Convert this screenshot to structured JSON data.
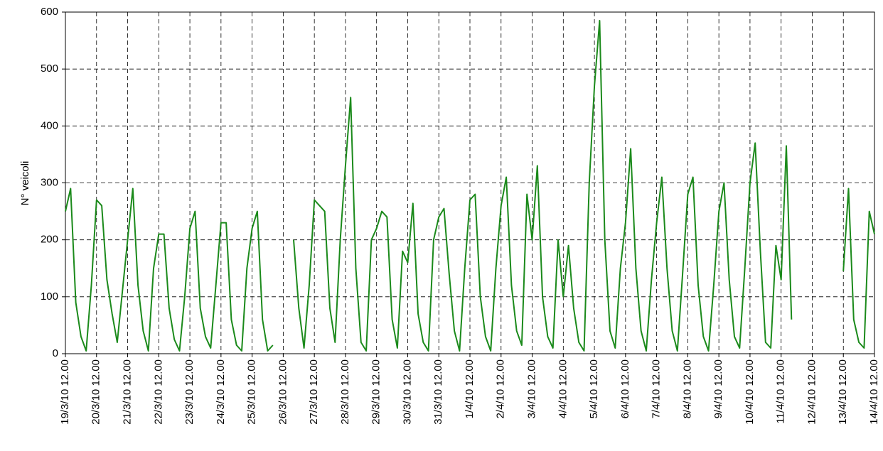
{
  "chart_data": {
    "type": "line",
    "y_label": "N° veicoli",
    "categories": [
      "19/3/10 12.00",
      null,
      null,
      null,
      null,
      null,
      "20/3/10 12.00",
      null,
      null,
      null,
      null,
      null,
      "21/3/10 12.00",
      null,
      null,
      null,
      null,
      null,
      "22/3/10 12.00",
      null,
      null,
      null,
      null,
      null,
      "23/3/10 12.00",
      null,
      null,
      null,
      null,
      null,
      "24/3/10 12.00",
      null,
      null,
      null,
      null,
      null,
      "25/3/10 12.00",
      null,
      null,
      null,
      null,
      null,
      "26/3/10 12.00",
      null,
      null,
      null,
      null,
      null,
      "27/3/10 12.00",
      null,
      null,
      null,
      null,
      null,
      "28/3/10 12.00",
      null,
      null,
      null,
      null,
      null,
      "29/3/10 12.00",
      null,
      null,
      null,
      null,
      null,
      "30/3/10 12.00",
      null,
      null,
      null,
      null,
      null,
      "31/3/10 12.00",
      null,
      null,
      null,
      null,
      null,
      "1/4/10 12.00",
      null,
      null,
      null,
      null,
      null,
      "2/4/10 12.00",
      null,
      null,
      null,
      null,
      null,
      "3/4/10 12.00",
      null,
      null,
      null,
      null,
      null,
      "4/4/10 12.00",
      null,
      null,
      null,
      null,
      null,
      "5/4/10 12.00",
      null,
      null,
      null,
      null,
      null,
      "6/4/10 12.00",
      null,
      null,
      null,
      null,
      null,
      "7/4/10 12.00",
      null,
      null,
      null,
      null,
      null,
      "8/4/10 12.00",
      null,
      null,
      null,
      null,
      null,
      "9/4/10 12.00",
      null,
      null,
      null,
      null,
      null,
      "10/4/10 12.00",
      null,
      null,
      null,
      null,
      null,
      "11/4/10 12.00",
      null,
      null,
      null,
      null,
      null,
      "12/4/10 12.00",
      null,
      null,
      null,
      null,
      null,
      "13/4/10 12.00",
      null,
      null,
      null,
      null,
      null,
      "14/4/10 12.00"
    ],
    "series": [
      {
        "name": "N° veicoli",
        "color": "#1b8a1b",
        "values": [
          250,
          290,
          90,
          30,
          5,
          120,
          270,
          260,
          130,
          70,
          20,
          110,
          200,
          290,
          120,
          40,
          5,
          150,
          210,
          210,
          80,
          25,
          5,
          100,
          220,
          250,
          80,
          30,
          10,
          120,
          230,
          230,
          60,
          15,
          5,
          150,
          220,
          250,
          60,
          5,
          15,
          null,
          null,
          null,
          200,
          80,
          10,
          120,
          270,
          260,
          250,
          80,
          20,
          200,
          330,
          450,
          150,
          20,
          5,
          200,
          220,
          250,
          240,
          60,
          10,
          180,
          160,
          264,
          70,
          20,
          5,
          200,
          240,
          255,
          140,
          40,
          5,
          150,
          270,
          280,
          100,
          30,
          5,
          150,
          260,
          310,
          120,
          40,
          15,
          280,
          200,
          330,
          100,
          30,
          10,
          200,
          100,
          190,
          80,
          20,
          5,
          300,
          470,
          585,
          200,
          40,
          10,
          150,
          230,
          360,
          150,
          40,
          5,
          130,
          230,
          310,
          150,
          40,
          5,
          140,
          280,
          310,
          120,
          30,
          5,
          120,
          250,
          300,
          130,
          30,
          10,
          150,
          300,
          370,
          180,
          20,
          10,
          190,
          130,
          365,
          60,
          null,
          null,
          null,
          null,
          null,
          null,
          null,
          null,
          null,
          145,
          290,
          60,
          20,
          10,
          250,
          210
        ]
      }
    ],
    "ylim": [
      0,
      600
    ],
    "yticks": [
      0,
      100,
      200,
      300,
      400,
      500,
      600
    ],
    "grid": true
  }
}
